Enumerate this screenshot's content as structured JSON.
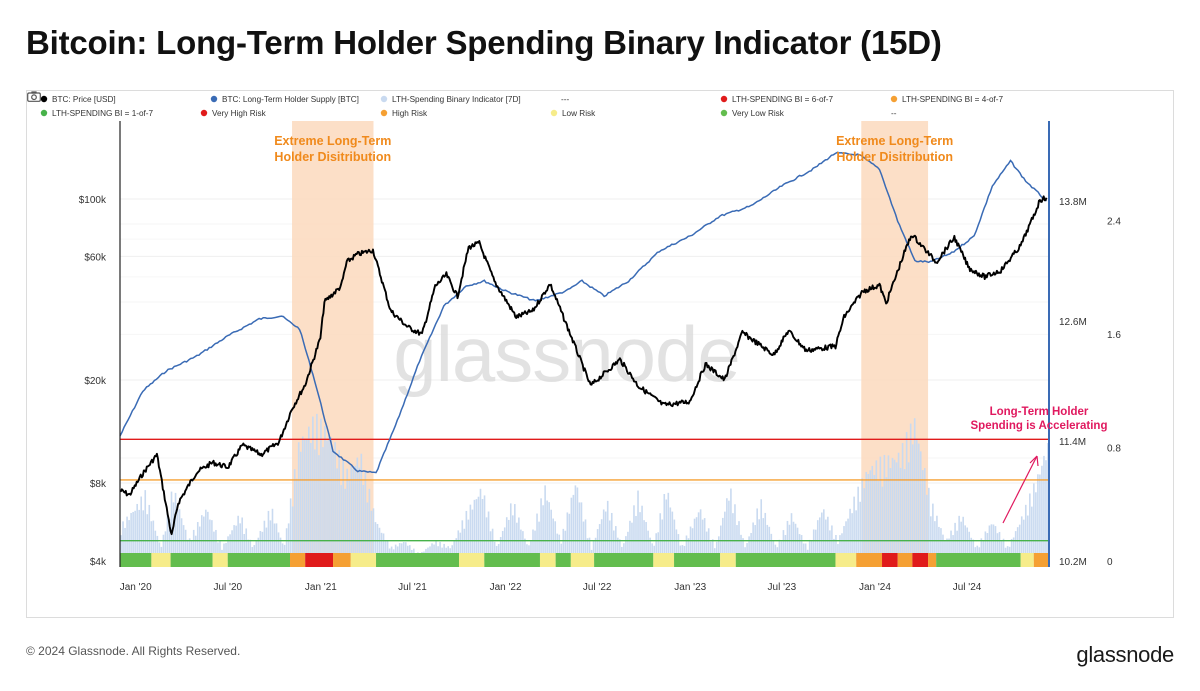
{
  "page": {
    "title": "Bitcoin: Long-Term Holder Spending Binary Indicator (15D)",
    "copyright": "© 2024 Glassnode. All Rights Reserved.",
    "logo": "glassnode",
    "watermark": "glassnode"
  },
  "legend": [
    {
      "label": "BTC: Price [USD]",
      "color": "#000000"
    },
    {
      "label": "BTC: Long-Term Holder Supply [BTC]",
      "color": "#3a6bb5"
    },
    {
      "label": "LTH-Spending Binary Indicator [7D]",
      "color": "#c9daf0"
    },
    {
      "label": "---",
      "color": null
    },
    {
      "label": "LTH-SPENDING BI = 6-of-7",
      "color": "#e01b1b"
    },
    {
      "label": "LTH-SPENDING BI = 4-of-7",
      "color": "#f5a033"
    },
    {
      "label": "LTH-SPENDING BI = 1-of-7",
      "color": "#47b24a"
    },
    {
      "label": "Very High Risk",
      "color": "#e01b1b"
    },
    {
      "label": "High Risk",
      "color": "#f5a033"
    },
    {
      "label": "Low Risk",
      "color": "#f6ec8a"
    },
    {
      "label": "Very Low Risk",
      "color": "#63bd4e"
    },
    {
      "label": "--",
      "color": null
    }
  ],
  "annotations": {
    "zone1": [
      "Extreme Long-Term",
      "Holder Disitribution"
    ],
    "zone2": [
      "Extreme Long-Term",
      "Holder Disitribution"
    ],
    "arrow": [
      "Long-Term Holder",
      "Spending is Accelerating"
    ]
  },
  "colors": {
    "price": "#000000",
    "supply": "#3a6bb5",
    "indicator_bars": "#c9daf0",
    "zone": "#fbd9bd",
    "zone_text": "#f08a1c",
    "threshold_6": "#e01b1b",
    "threshold_4": "#f5a033",
    "threshold_1": "#47b24a",
    "arrow": "#e0195f"
  },
  "chart_data": {
    "type": "line",
    "x_range": [
      "2019-12-01",
      "2024-12-10"
    ],
    "x_ticks": [
      "Jan '20",
      "Jul '20",
      "Jan '21",
      "Jul '21",
      "Jan '22",
      "Jul '22",
      "Jan '23",
      "Jul '23",
      "Jan '24",
      "Jul '24"
    ],
    "x_tick_dates": [
      "2020-01-01",
      "2020-07-01",
      "2021-01-01",
      "2021-07-01",
      "2022-01-01",
      "2022-07-01",
      "2023-01-01",
      "2023-07-01",
      "2024-01-01",
      "2024-07-01"
    ],
    "y_left": {
      "scale": "log",
      "range": [
        4000,
        200000
      ],
      "ticks": [
        {
          "label": "$4k",
          "value": 4000
        },
        {
          "label": "$8k",
          "value": 8000
        },
        {
          "label": "$20k",
          "value": 20000
        },
        {
          "label": "$60k",
          "value": 60000
        },
        {
          "label": "$100k",
          "value": 100000
        }
      ]
    },
    "y_right_supply": {
      "range": [
        10200000,
        14600000
      ],
      "ticks": [
        {
          "label": "10.2M",
          "value": 10200000
        },
        {
          "label": "11.4M",
          "value": 11400000
        },
        {
          "label": "12.6M",
          "value": 12600000
        },
        {
          "label": "13.8M",
          "value": 13800000
        }
      ]
    },
    "y_right_indicator": {
      "range": [
        0,
        3.1
      ],
      "ticks": [
        {
          "label": "0",
          "value": 0
        },
        {
          "label": "0.8",
          "value": 0.8
        },
        {
          "label": "1.6",
          "value": 1.6
        },
        {
          "label": "2.4",
          "value": 2.4
        }
      ]
    },
    "thresholds": [
      {
        "name": "LTH-SPENDING BI = 6-of-7",
        "value": 0.857
      },
      {
        "name": "LTH-SPENDING BI = 4-of-7",
        "value": 0.571
      },
      {
        "name": "LTH-SPENDING BI = 1-of-7",
        "value": 0.143
      }
    ],
    "zones": [
      {
        "start": "2020-11-05",
        "end": "2021-04-15"
      },
      {
        "start": "2023-12-05",
        "end": "2024-04-15"
      }
    ],
    "series": [
      {
        "name": "BTC: Price [USD]",
        "points": [
          [
            "2019-12-01",
            7500
          ],
          [
            "2019-12-20",
            7200
          ],
          [
            "2020-01-15",
            8700
          ],
          [
            "2020-02-12",
            10300
          ],
          [
            "2020-03-12",
            5000
          ],
          [
            "2020-03-25",
            6700
          ],
          [
            "2020-04-30",
            8800
          ],
          [
            "2020-06-01",
            9600
          ],
          [
            "2020-07-01",
            9200
          ],
          [
            "2020-07-30",
            11200
          ],
          [
            "2020-09-05",
            10300
          ],
          [
            "2020-10-10",
            11500
          ],
          [
            "2020-11-05",
            15500
          ],
          [
            "2020-12-01",
            19200
          ],
          [
            "2020-12-31",
            29000
          ],
          [
            "2021-01-08",
            40000
          ],
          [
            "2021-02-10",
            46000
          ],
          [
            "2021-02-21",
            57000
          ],
          [
            "2021-03-13",
            61000
          ],
          [
            "2021-04-14",
            63500
          ],
          [
            "2021-05-19",
            37000
          ],
          [
            "2021-06-22",
            32000
          ],
          [
            "2021-07-20",
            30000
          ],
          [
            "2021-08-15",
            46000
          ],
          [
            "2021-09-06",
            51000
          ],
          [
            "2021-09-28",
            42000
          ],
          [
            "2021-10-20",
            65000
          ],
          [
            "2021-11-10",
            67500
          ],
          [
            "2021-12-10",
            48000
          ],
          [
            "2022-01-22",
            35000
          ],
          [
            "2022-02-24",
            37000
          ],
          [
            "2022-03-30",
            47000
          ],
          [
            "2022-05-12",
            29000
          ],
          [
            "2022-06-18",
            19000
          ],
          [
            "2022-08-15",
            24000
          ],
          [
            "2022-09-20",
            19000
          ],
          [
            "2022-11-09",
            16000
          ],
          [
            "2022-12-31",
            16500
          ],
          [
            "2023-01-31",
            23000
          ],
          [
            "2023-03-10",
            20000
          ],
          [
            "2023-04-14",
            30500
          ],
          [
            "2023-06-15",
            25000
          ],
          [
            "2023-07-14",
            31000
          ],
          [
            "2023-08-18",
            26000
          ],
          [
            "2023-10-15",
            27000
          ],
          [
            "2023-11-01",
            35000
          ],
          [
            "2023-12-08",
            44000
          ],
          [
            "2024-01-10",
            46500
          ],
          [
            "2024-01-23",
            39500
          ],
          [
            "2024-02-28",
            62000
          ],
          [
            "2024-03-14",
            73000
          ],
          [
            "2024-05-01",
            57000
          ],
          [
            "2024-06-06",
            71000
          ],
          [
            "2024-07-05",
            54000
          ],
          [
            "2024-08-05",
            50000
          ],
          [
            "2024-09-06",
            53000
          ],
          [
            "2024-10-15",
            66000
          ],
          [
            "2024-11-12",
            88000
          ],
          [
            "2024-11-22",
            99000
          ],
          [
            "2024-12-05",
            101000
          ]
        ]
      },
      {
        "name": "BTC: Long-Term Holder Supply [BTC]",
        "points": [
          [
            "2019-12-01",
            11450000
          ],
          [
            "2020-01-15",
            11900000
          ],
          [
            "2020-03-01",
            12100000
          ],
          [
            "2020-05-01",
            12250000
          ],
          [
            "2020-07-01",
            12450000
          ],
          [
            "2020-09-01",
            12620000
          ],
          [
            "2020-10-15",
            12650000
          ],
          [
            "2020-11-20",
            12520000
          ],
          [
            "2020-12-20",
            12000000
          ],
          [
            "2021-01-25",
            11300000
          ],
          [
            "2021-03-15",
            11100000
          ],
          [
            "2021-04-20",
            11080000
          ],
          [
            "2021-06-01",
            11600000
          ],
          [
            "2021-07-15",
            12200000
          ],
          [
            "2021-09-01",
            12750000
          ],
          [
            "2021-10-15",
            12950000
          ],
          [
            "2021-11-20",
            13000000
          ],
          [
            "2022-01-01",
            12900000
          ],
          [
            "2022-03-01",
            12800000
          ],
          [
            "2022-05-01",
            12900000
          ],
          [
            "2022-06-01",
            13000000
          ],
          [
            "2022-07-15",
            12850000
          ],
          [
            "2022-09-01",
            13000000
          ],
          [
            "2022-11-01",
            13300000
          ],
          [
            "2023-01-01",
            13450000
          ],
          [
            "2023-03-01",
            13650000
          ],
          [
            "2023-05-01",
            13750000
          ],
          [
            "2023-07-01",
            13950000
          ],
          [
            "2023-09-01",
            14120000
          ],
          [
            "2023-10-15",
            14280000
          ],
          [
            "2023-12-01",
            14260000
          ],
          [
            "2024-01-10",
            14120000
          ],
          [
            "2024-02-15",
            13600000
          ],
          [
            "2024-03-20",
            13200000
          ],
          [
            "2024-04-20",
            13190000
          ],
          [
            "2024-06-01",
            13280000
          ],
          [
            "2024-07-15",
            13450000
          ],
          [
            "2024-08-20",
            13950000
          ],
          [
            "2024-09-25",
            14200000
          ],
          [
            "2024-10-25",
            14000000
          ],
          [
            "2024-12-05",
            13800000
          ]
        ]
      },
      {
        "name": "LTH-Spending Binary Indicator [7D]",
        "points": [
          [
            "2019-12-01",
            0.25
          ],
          [
            "2020-01-20",
            0.5
          ],
          [
            "2020-02-20",
            0.1
          ],
          [
            "2020-03-15",
            0.55
          ],
          [
            "2020-04-15",
            0.15
          ],
          [
            "2020-05-20",
            0.4
          ],
          [
            "2020-06-20",
            0.1
          ],
          [
            "2020-07-25",
            0.35
          ],
          [
            "2020-08-20",
            0.1
          ],
          [
            "2020-09-25",
            0.4
          ],
          [
            "2020-10-20",
            0.1
          ],
          [
            "2020-11-20",
            0.9
          ],
          [
            "2020-12-20",
            1.05
          ],
          [
            "2021-01-20",
            0.95
          ],
          [
            "2021-02-20",
            0.65
          ],
          [
            "2021-03-20",
            0.8
          ],
          [
            "2021-04-20",
            0.3
          ],
          [
            "2021-05-20",
            0.1
          ],
          [
            "2021-06-15",
            0.15
          ],
          [
            "2021-07-15",
            0.05
          ],
          [
            "2021-08-15",
            0.15
          ],
          [
            "2021-09-15",
            0.1
          ],
          [
            "2021-10-15",
            0.35
          ],
          [
            "2021-11-15",
            0.55
          ],
          [
            "2021-12-15",
            0.1
          ],
          [
            "2022-01-15",
            0.45
          ],
          [
            "2022-02-15",
            0.1
          ],
          [
            "2022-03-20",
            0.55
          ],
          [
            "2022-04-20",
            0.15
          ],
          [
            "2022-05-20",
            0.6
          ],
          [
            "2022-06-20",
            0.1
          ],
          [
            "2022-07-20",
            0.45
          ],
          [
            "2022-08-20",
            0.1
          ],
          [
            "2022-09-20",
            0.5
          ],
          [
            "2022-10-20",
            0.1
          ],
          [
            "2022-11-15",
            0.55
          ],
          [
            "2022-12-15",
            0.1
          ],
          [
            "2023-01-20",
            0.4
          ],
          [
            "2023-02-20",
            0.1
          ],
          [
            "2023-03-20",
            0.55
          ],
          [
            "2023-04-20",
            0.1
          ],
          [
            "2023-05-20",
            0.45
          ],
          [
            "2023-06-20",
            0.1
          ],
          [
            "2023-07-20",
            0.35
          ],
          [
            "2023-08-20",
            0.1
          ],
          [
            "2023-09-20",
            0.4
          ],
          [
            "2023-10-20",
            0.15
          ],
          [
            "2023-11-20",
            0.45
          ],
          [
            "2023-12-20",
            0.7
          ],
          [
            "2024-01-20",
            0.75
          ],
          [
            "2024-02-20",
            0.8
          ],
          [
            "2024-03-20",
            1.05
          ],
          [
            "2024-04-20",
            0.45
          ],
          [
            "2024-05-20",
            0.15
          ],
          [
            "2024-06-20",
            0.35
          ],
          [
            "2024-07-20",
            0.1
          ],
          [
            "2024-08-20",
            0.3
          ],
          [
            "2024-09-20",
            0.1
          ],
          [
            "2024-10-20",
            0.35
          ],
          [
            "2024-11-15",
            0.6
          ],
          [
            "2024-12-05",
            0.85
          ]
        ]
      }
    ],
    "risk_bar": {
      "legend": [
        "Very High Risk",
        "High Risk",
        "Low Risk",
        "Very Low Risk"
      ],
      "segments": [
        {
          "start": "2019-12-01",
          "end": "2020-02-01",
          "level": "Very Low Risk"
        },
        {
          "start": "2020-02-01",
          "end": "2020-03-10",
          "level": "Low Risk"
        },
        {
          "start": "2020-03-10",
          "end": "2020-06-01",
          "level": "Very Low Risk"
        },
        {
          "start": "2020-06-01",
          "end": "2020-07-01",
          "level": "Low Risk"
        },
        {
          "start": "2020-07-01",
          "end": "2020-11-01",
          "level": "Very Low Risk"
        },
        {
          "start": "2020-11-01",
          "end": "2020-12-01",
          "level": "High Risk"
        },
        {
          "start": "2020-12-01",
          "end": "2021-01-25",
          "level": "Very High Risk"
        },
        {
          "start": "2021-01-25",
          "end": "2021-03-01",
          "level": "High Risk"
        },
        {
          "start": "2021-03-01",
          "end": "2021-04-20",
          "level": "Low Risk"
        },
        {
          "start": "2021-04-20",
          "end": "2021-10-01",
          "level": "Very Low Risk"
        },
        {
          "start": "2021-10-01",
          "end": "2021-11-20",
          "level": "Low Risk"
        },
        {
          "start": "2021-11-20",
          "end": "2022-03-10",
          "level": "Very Low Risk"
        },
        {
          "start": "2022-03-10",
          "end": "2022-04-10",
          "level": "Low Risk"
        },
        {
          "start": "2022-04-10",
          "end": "2022-05-10",
          "level": "Very Low Risk"
        },
        {
          "start": "2022-05-10",
          "end": "2022-06-25",
          "level": "Low Risk"
        },
        {
          "start": "2022-06-25",
          "end": "2022-10-20",
          "level": "Very Low Risk"
        },
        {
          "start": "2022-10-20",
          "end": "2022-11-30",
          "level": "Low Risk"
        },
        {
          "start": "2022-11-30",
          "end": "2023-03-01",
          "level": "Very Low Risk"
        },
        {
          "start": "2023-03-01",
          "end": "2023-04-01",
          "level": "Low Risk"
        },
        {
          "start": "2023-04-01",
          "end": "2023-10-15",
          "level": "Very Low Risk"
        },
        {
          "start": "2023-10-15",
          "end": "2023-11-25",
          "level": "Low Risk"
        },
        {
          "start": "2023-11-25",
          "end": "2024-01-15",
          "level": "High Risk"
        },
        {
          "start": "2024-01-15",
          "end": "2024-02-15",
          "level": "Very High Risk"
        },
        {
          "start": "2024-02-15",
          "end": "2024-03-15",
          "level": "High Risk"
        },
        {
          "start": "2024-03-15",
          "end": "2024-04-15",
          "level": "Very High Risk"
        },
        {
          "start": "2024-04-15",
          "end": "2024-05-01",
          "level": "High Risk"
        },
        {
          "start": "2024-05-01",
          "end": "2024-10-15",
          "level": "Very Low Risk"
        },
        {
          "start": "2024-10-15",
          "end": "2024-11-10",
          "level": "Low Risk"
        },
        {
          "start": "2024-11-10",
          "end": "2024-12-10",
          "level": "High Risk"
        }
      ]
    }
  }
}
